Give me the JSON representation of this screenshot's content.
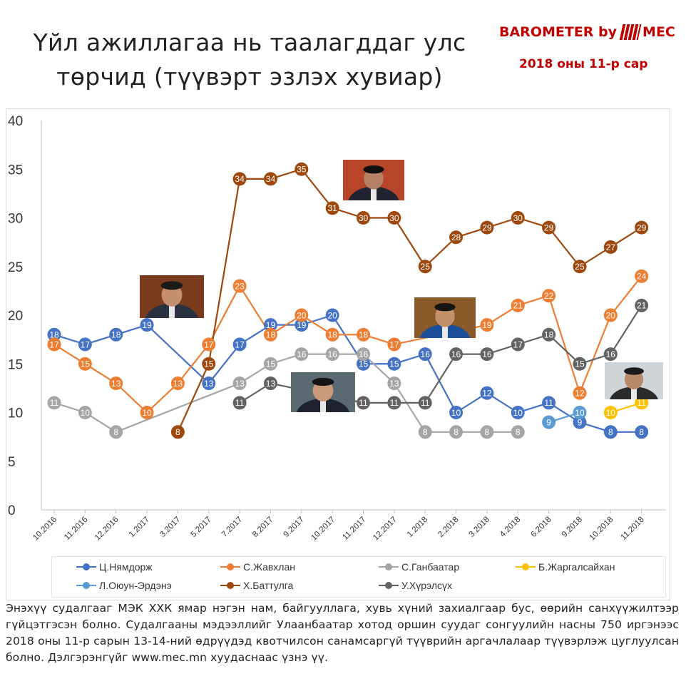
{
  "title_lines": [
    "Үйл ажиллагаа нь таалагддаг улс",
    "төрчид (түүвэрт эзлэх хувиар)"
  ],
  "brand": "BAROMETER by",
  "brand_logo_text": "MEC",
  "survey_date": "2018 оны 11-р сар",
  "footer": "Энэхүү судалгааг МЭК ХХК ямар нэгэн нам, байгууллага, хувь хүний захиалгаар бус, өөрийн санхүүжилтээр гүйцэтгэсэн болно. Судалгааны мэдээллийг Улаанбаатар хотод оршин суудаг сонгуулийн насны 750 иргэнээс 2018 оны 11-р сарын 13-14-ний өдрүүдэд квотчилсон санамсаргүй түүврийн аргачлалаар түүвэрлэж цуглуулсан болно. Дэлгэрэнгүйг www.mec.mn хуудаснаас үзнэ үү.",
  "chart_data": {
    "type": "line",
    "categories": [
      "10.2016",
      "11.2016",
      "12.2016",
      "1.2017",
      "3.2017",
      "5.2017",
      "7.2017",
      "8.2017",
      "9.2017",
      "10.2017",
      "11.2017",
      "12.2017",
      "1.2018",
      "2.2018",
      "3.2018",
      "4.2018",
      "6.2018",
      "9.2018",
      "10.2018",
      "11.2018"
    ],
    "ylim": [
      0,
      40
    ],
    "yticks": [
      0,
      5,
      10,
      15,
      20,
      25,
      30,
      35,
      40
    ],
    "grid": false,
    "legend_position": "bottom",
    "series": [
      {
        "name": "Ц.Нямдорж",
        "color": "#4472c4",
        "values": [
          18,
          17,
          18,
          19,
          null,
          13,
          17,
          19,
          19,
          20,
          15,
          15,
          16,
          10,
          12,
          10,
          11,
          9,
          8,
          8
        ]
      },
      {
        "name": "С.Жавхлан",
        "color": "#ed7d31",
        "values": [
          17,
          15,
          13,
          10,
          13,
          17,
          23,
          18,
          20,
          18,
          18,
          17,
          null,
          null,
          19,
          21,
          22,
          12,
          20,
          24
        ]
      },
      {
        "name": "С.Ганбаатар",
        "color": "#a5a5a5",
        "values": [
          11,
          10,
          8,
          null,
          null,
          null,
          13,
          15,
          16,
          16,
          16,
          13,
          8,
          8,
          8,
          8,
          null,
          null,
          null,
          null
        ]
      },
      {
        "name": "Б.Жаргалсайхан",
        "color": "#ffc000",
        "values": [
          null,
          null,
          null,
          null,
          null,
          null,
          null,
          null,
          null,
          null,
          null,
          null,
          null,
          null,
          null,
          null,
          null,
          null,
          10,
          11
        ]
      },
      {
        "name": "Л.Оюун-Эрдэнэ",
        "color": "#5b9bd5",
        "values": [
          null,
          null,
          null,
          null,
          null,
          null,
          null,
          null,
          null,
          null,
          null,
          null,
          null,
          null,
          null,
          null,
          9,
          10,
          null,
          null
        ]
      },
      {
        "name": "Х.Баттулга",
        "color": "#9e480e",
        "values": [
          null,
          null,
          null,
          null,
          8,
          15,
          34,
          34,
          35,
          31,
          30,
          30,
          25,
          28,
          29,
          30,
          29,
          25,
          27,
          29
        ]
      },
      {
        "name": "У.Хүрэлсүх",
        "color": "#636363",
        "values": [
          null,
          null,
          null,
          null,
          null,
          null,
          11,
          13,
          null,
          null,
          11,
          11,
          11,
          16,
          16,
          17,
          18,
          15,
          16,
          21
        ]
      }
    ]
  },
  "photos": [
    {
      "id": "photo-nyamdorj",
      "bg": "#7a3b1e",
      "skin": "#c49070",
      "suit": "#2a3140",
      "hair": "#1a1a1a"
    },
    {
      "id": "photo-battulga",
      "bg": "#b8452a",
      "skin": "#b58064",
      "suit": "#1f2430",
      "hair": "#111111"
    },
    {
      "id": "photo-jargalsaikhan",
      "bg": "#8a5a2b",
      "skin": "#c2906a",
      "suit": "#1c4f9a",
      "hair": "#151515"
    },
    {
      "id": "photo-khurelsukh",
      "bg": "#5b6a72",
      "skin": "#c89a7a",
      "suit": "#1f2330",
      "hair": "#141414"
    },
    {
      "id": "photo-man-glasses",
      "bg": "#cfd4d8",
      "skin": "#b98a6a",
      "suit": "#2b2b2b",
      "hair": "#1a1a1a"
    }
  ]
}
